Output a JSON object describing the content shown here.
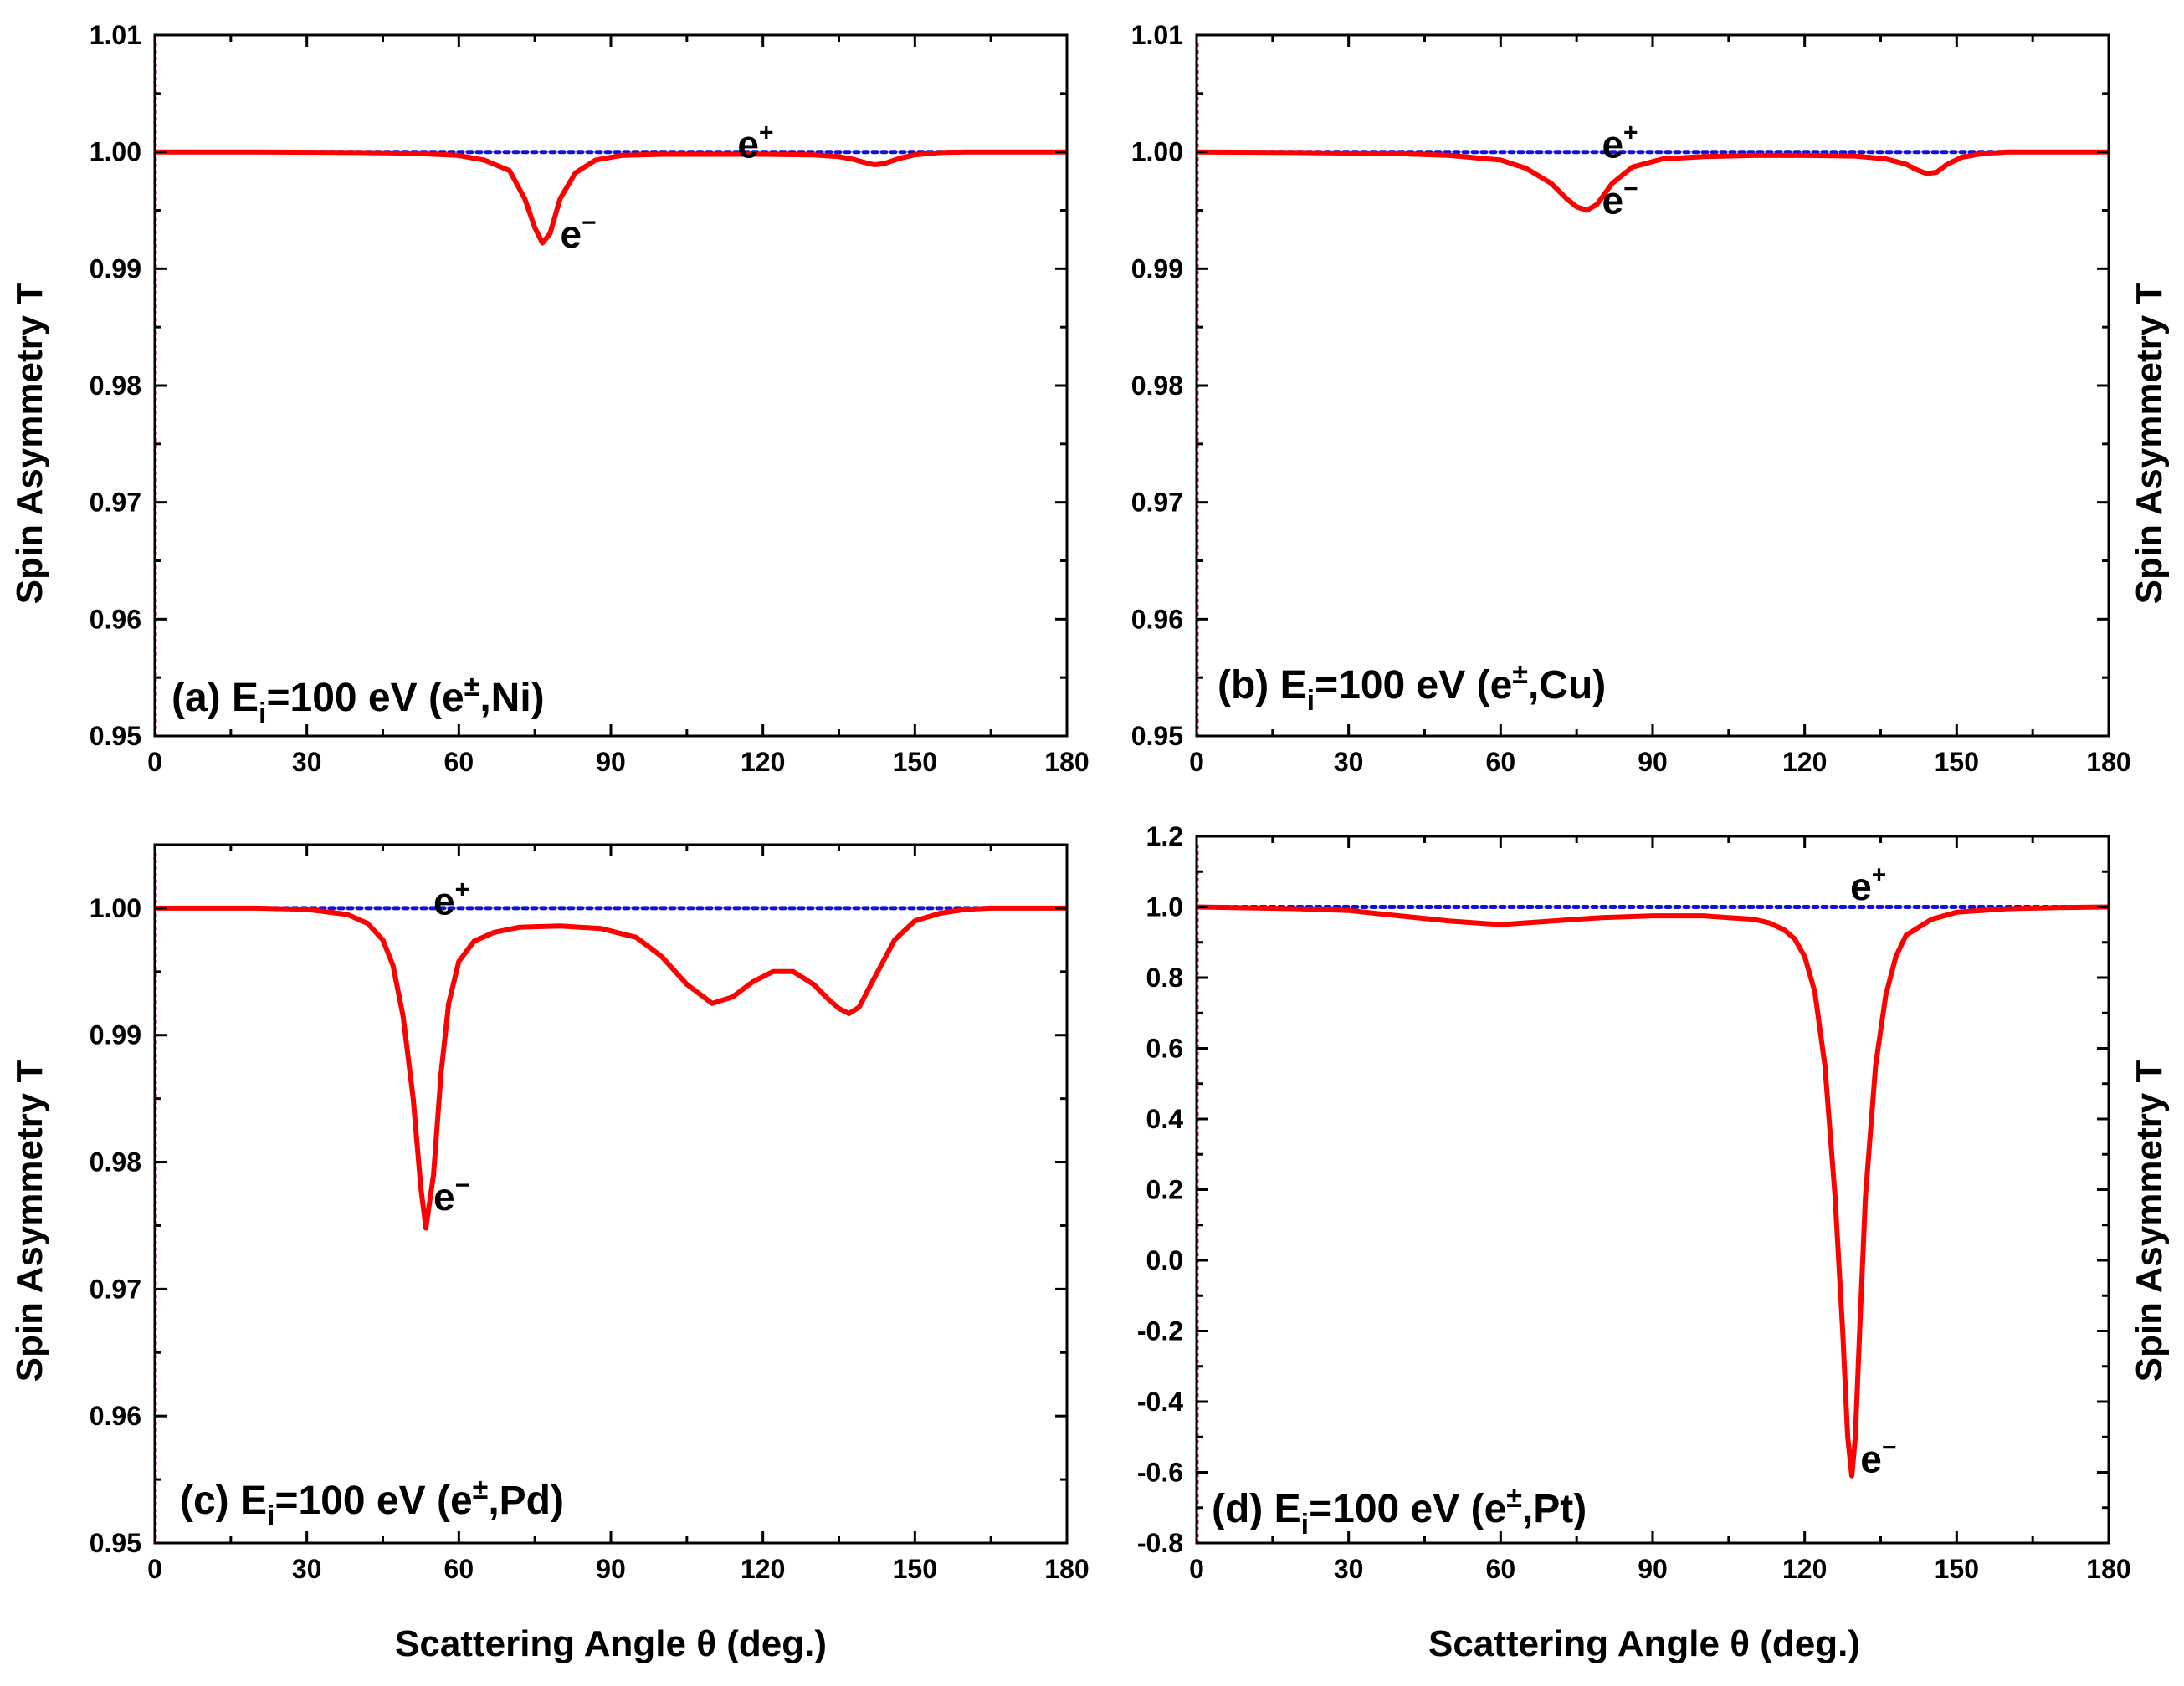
{
  "figure": {
    "x_axis_title": "Scattering Angle θ (deg.)",
    "y_axis_title": "Spin Asymmetry T",
    "series_colors": {
      "positron": "#1010e0",
      "electron": "#ff0000"
    }
  },
  "chart_data": [
    {
      "type": "line",
      "id": "a",
      "label_prefix": "(a) E",
      "label_sub": "i",
      "label_mid": "=100 eV (e",
      "label_sup": "±",
      "label_suffix": ",Ni)",
      "xlim": [
        0,
        180
      ],
      "ylim": [
        0.95,
        1.01
      ],
      "x_ticks": [
        0,
        30,
        60,
        90,
        120,
        150,
        180
      ],
      "y_ticks": [
        0.95,
        0.96,
        0.97,
        0.98,
        0.99,
        1.0,
        1.01
      ],
      "y_tick_labels": [
        "0.95",
        "0.96",
        "0.97",
        "0.98",
        "0.99",
        "1.00",
        "1.01"
      ],
      "ann_pos": {
        "base": "e",
        "sup": "+"
      },
      "ann_neg": {
        "base": "e",
        "sup": "−"
      },
      "series": [
        {
          "name": "e+",
          "style": "dotted",
          "x": [
            0,
            180
          ],
          "y": [
            1.0,
            1.0
          ]
        },
        {
          "name": "e-",
          "style": "solid",
          "x": [
            0,
            20,
            40,
            50,
            60,
            65,
            70,
            73,
            75,
            76.5,
            78,
            80,
            83,
            87,
            92,
            100,
            110,
            120,
            130,
            135,
            138,
            140,
            142,
            144,
            147,
            150,
            155,
            160,
            170,
            180
          ],
          "y": [
            1.0,
            1.0,
            0.99995,
            0.9999,
            0.9997,
            0.9993,
            0.9984,
            0.996,
            0.9935,
            0.9922,
            0.993,
            0.996,
            0.9982,
            0.9993,
            0.9997,
            0.9998,
            0.9998,
            0.9998,
            0.99975,
            0.9996,
            0.99935,
            0.9991,
            0.9989,
            0.999,
            0.99945,
            0.99975,
            0.99995,
            1.0,
            1.0,
            1.0
          ]
        }
      ]
    },
    {
      "type": "line",
      "id": "b",
      "label_prefix": "(b) E",
      "label_sub": "i",
      "label_mid": "=100 eV (e",
      "label_sup": "±",
      "label_suffix": ",Cu)",
      "xlim": [
        0,
        180
      ],
      "ylim": [
        0.95,
        1.01
      ],
      "x_ticks": [
        0,
        30,
        60,
        90,
        120,
        150,
        180
      ],
      "y_ticks": [
        0.95,
        0.96,
        0.97,
        0.98,
        0.99,
        1.0,
        1.01
      ],
      "y_tick_labels": [
        "0.95",
        "0.96",
        "0.97",
        "0.98",
        "0.99",
        "1.00",
        "1.01"
      ],
      "ann_pos": {
        "base": "e",
        "sup": "+"
      },
      "ann_neg": {
        "base": "e",
        "sup": "−"
      },
      "series": [
        {
          "name": "e+",
          "style": "dotted",
          "x": [
            0,
            180
          ],
          "y": [
            1.0,
            1.0
          ]
        },
        {
          "name": "e-",
          "style": "solid",
          "x": [
            0,
            20,
            40,
            50,
            60,
            65,
            70,
            73,
            75,
            77,
            79,
            82,
            86,
            92,
            100,
            110,
            120,
            130,
            136,
            140,
            142,
            144,
            146,
            148,
            151,
            155,
            160,
            170,
            180
          ],
          "y": [
            1.0,
            0.99995,
            0.99985,
            0.9997,
            0.9993,
            0.9986,
            0.9973,
            0.996,
            0.9953,
            0.995,
            0.9955,
            0.9973,
            0.9987,
            0.9994,
            0.9996,
            0.9997,
            0.9997,
            0.99965,
            0.9994,
            0.99895,
            0.9985,
            0.99815,
            0.99825,
            0.9989,
            0.99955,
            0.99985,
            1.0,
            1.0,
            1.0
          ]
        }
      ]
    },
    {
      "type": "line",
      "id": "c",
      "label_prefix": "(c) E",
      "label_sub": "i",
      "label_mid": "=100 eV (e",
      "label_sup": "±",
      "label_suffix": ",Pd)",
      "xlim": [
        0,
        180
      ],
      "ylim": [
        0.95,
        1.005
      ],
      "x_ticks": [
        0,
        30,
        60,
        90,
        120,
        150,
        180
      ],
      "y_ticks": [
        0.95,
        0.96,
        0.97,
        0.98,
        0.99,
        1.0
      ],
      "y_tick_labels": [
        "0.95",
        "0.96",
        "0.97",
        "0.98",
        "0.99",
        "1.00"
      ],
      "ann_pos": {
        "base": "e",
        "sup": "+"
      },
      "ann_neg": {
        "base": "e",
        "sup": "−"
      },
      "series": [
        {
          "name": "e+",
          "style": "dotted",
          "x": [
            0,
            180
          ],
          "y": [
            1.0,
            1.0
          ]
        },
        {
          "name": "e-",
          "style": "solid",
          "x": [
            0,
            20,
            30,
            38,
            42,
            45,
            47,
            49,
            51,
            52.5,
            53.5,
            55,
            56.5,
            58,
            60,
            63,
            67,
            72,
            80,
            88,
            95,
            100,
            105,
            110,
            114,
            118,
            122,
            126,
            130,
            133,
            135,
            137,
            139,
            142,
            146,
            150,
            155,
            160,
            165,
            170,
            180
          ],
          "y": [
            1.0,
            1.0,
            0.9999,
            0.9995,
            0.9988,
            0.9975,
            0.9955,
            0.9915,
            0.985,
            0.978,
            0.9748,
            0.979,
            0.987,
            0.9925,
            0.9958,
            0.9974,
            0.9981,
            0.9985,
            0.9986,
            0.9984,
            0.9977,
            0.9962,
            0.994,
            0.9925,
            0.993,
            0.9942,
            0.995,
            0.995,
            0.994,
            0.9928,
            0.9921,
            0.9917,
            0.9922,
            0.9945,
            0.9975,
            0.999,
            0.9996,
            0.9999,
            1.0,
            1.0,
            1.0
          ]
        }
      ]
    },
    {
      "type": "line",
      "id": "d",
      "label_prefix": "(d) E",
      "label_sub": "i",
      "label_mid": "=100 eV (e",
      "label_sup": "±",
      "label_suffix": ",Pt)",
      "xlim": [
        0,
        180
      ],
      "ylim": [
        -0.8,
        1.2
      ],
      "x_ticks": [
        0,
        30,
        60,
        90,
        120,
        150,
        180
      ],
      "y_ticks": [
        -0.8,
        -0.6,
        -0.4,
        -0.2,
        0.0,
        0.2,
        0.4,
        0.6,
        0.8,
        1.0,
        1.2
      ],
      "y_tick_labels": [
        "-0.8",
        "-0.6",
        "-0.4",
        "-0.2",
        "0.0",
        "0.2",
        "0.4",
        "0.6",
        "0.8",
        "1.0",
        "1.2"
      ],
      "ann_pos": {
        "base": "e",
        "sup": "+"
      },
      "ann_neg": {
        "base": "e",
        "sup": "−"
      },
      "series": [
        {
          "name": "e+",
          "style": "dotted",
          "x": [
            0,
            180
          ],
          "y": [
            1.0,
            1.0
          ]
        },
        {
          "name": "e-",
          "style": "solid",
          "x": [
            0,
            20,
            30,
            40,
            50,
            55,
            60,
            65,
            70,
            80,
            90,
            100,
            105,
            110,
            113,
            116,
            118,
            120,
            122,
            124,
            126,
            127.5,
            128.5,
            129.3,
            130,
            131,
            132,
            134,
            136,
            138,
            140,
            145,
            150,
            160,
            170,
            180
          ],
          "y": [
            1.0,
            0.995,
            0.99,
            0.975,
            0.96,
            0.955,
            0.95,
            0.955,
            0.96,
            0.97,
            0.975,
            0.975,
            0.97,
            0.965,
            0.955,
            0.935,
            0.91,
            0.86,
            0.76,
            0.55,
            0.18,
            -0.2,
            -0.5,
            -0.61,
            -0.5,
            -0.15,
            0.18,
            0.55,
            0.75,
            0.86,
            0.92,
            0.965,
            0.985,
            0.995,
            0.998,
            1.0
          ]
        }
      ]
    }
  ]
}
